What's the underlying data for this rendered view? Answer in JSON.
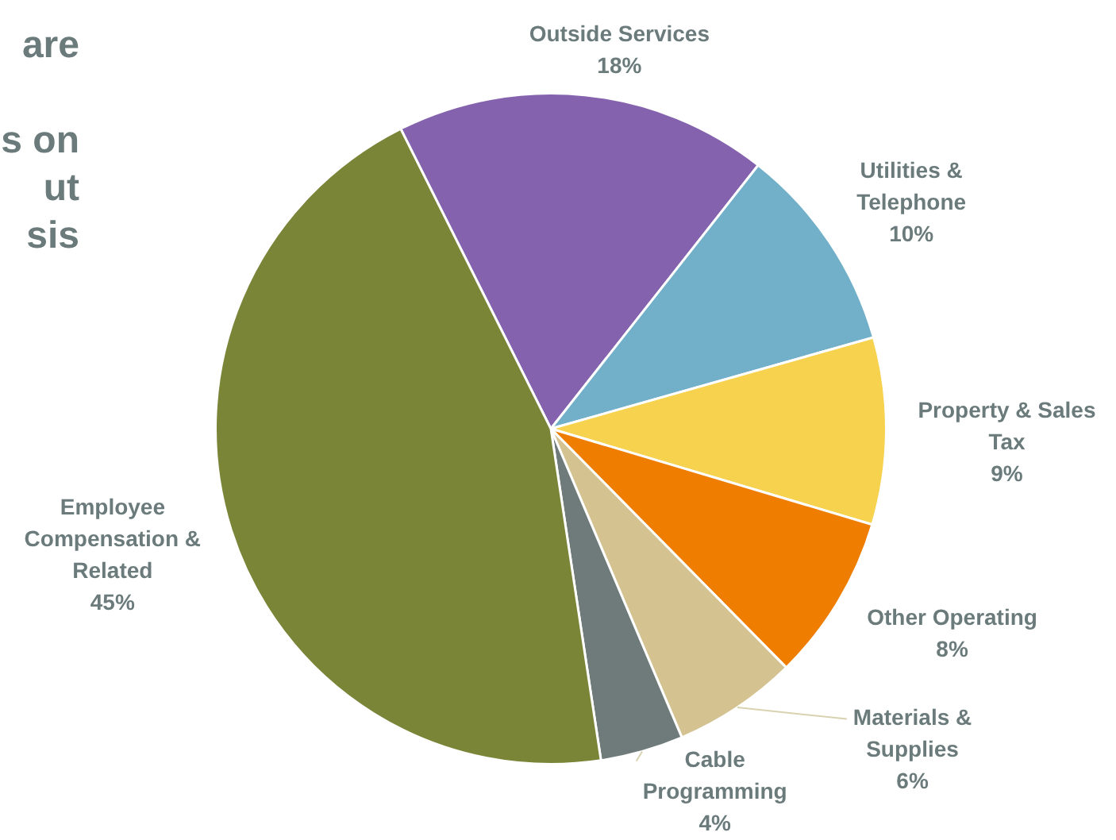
{
  "chart_data": {
    "type": "pie",
    "categories": [
      "Outside Services",
      "Utilities & Telephone",
      "Property & Sales Tax",
      "Other Operating",
      "Materials & Supplies",
      "Cable Programming",
      "Employee Compensation & Related"
    ],
    "values": [
      18,
      10,
      9,
      8,
      6,
      4,
      45
    ],
    "value_labels": [
      "18%",
      "10%",
      "9%",
      "8%",
      "6%",
      "4%",
      "45%"
    ],
    "colors": [
      "#8562ae",
      "#72b0c9",
      "#f6d24f",
      "#ee7d00",
      "#d4c391",
      "#6e7b7a",
      "#7a8538"
    ],
    "annotations": [
      "are",
      "s on",
      "ut",
      "sis"
    ],
    "legend": false
  }
}
